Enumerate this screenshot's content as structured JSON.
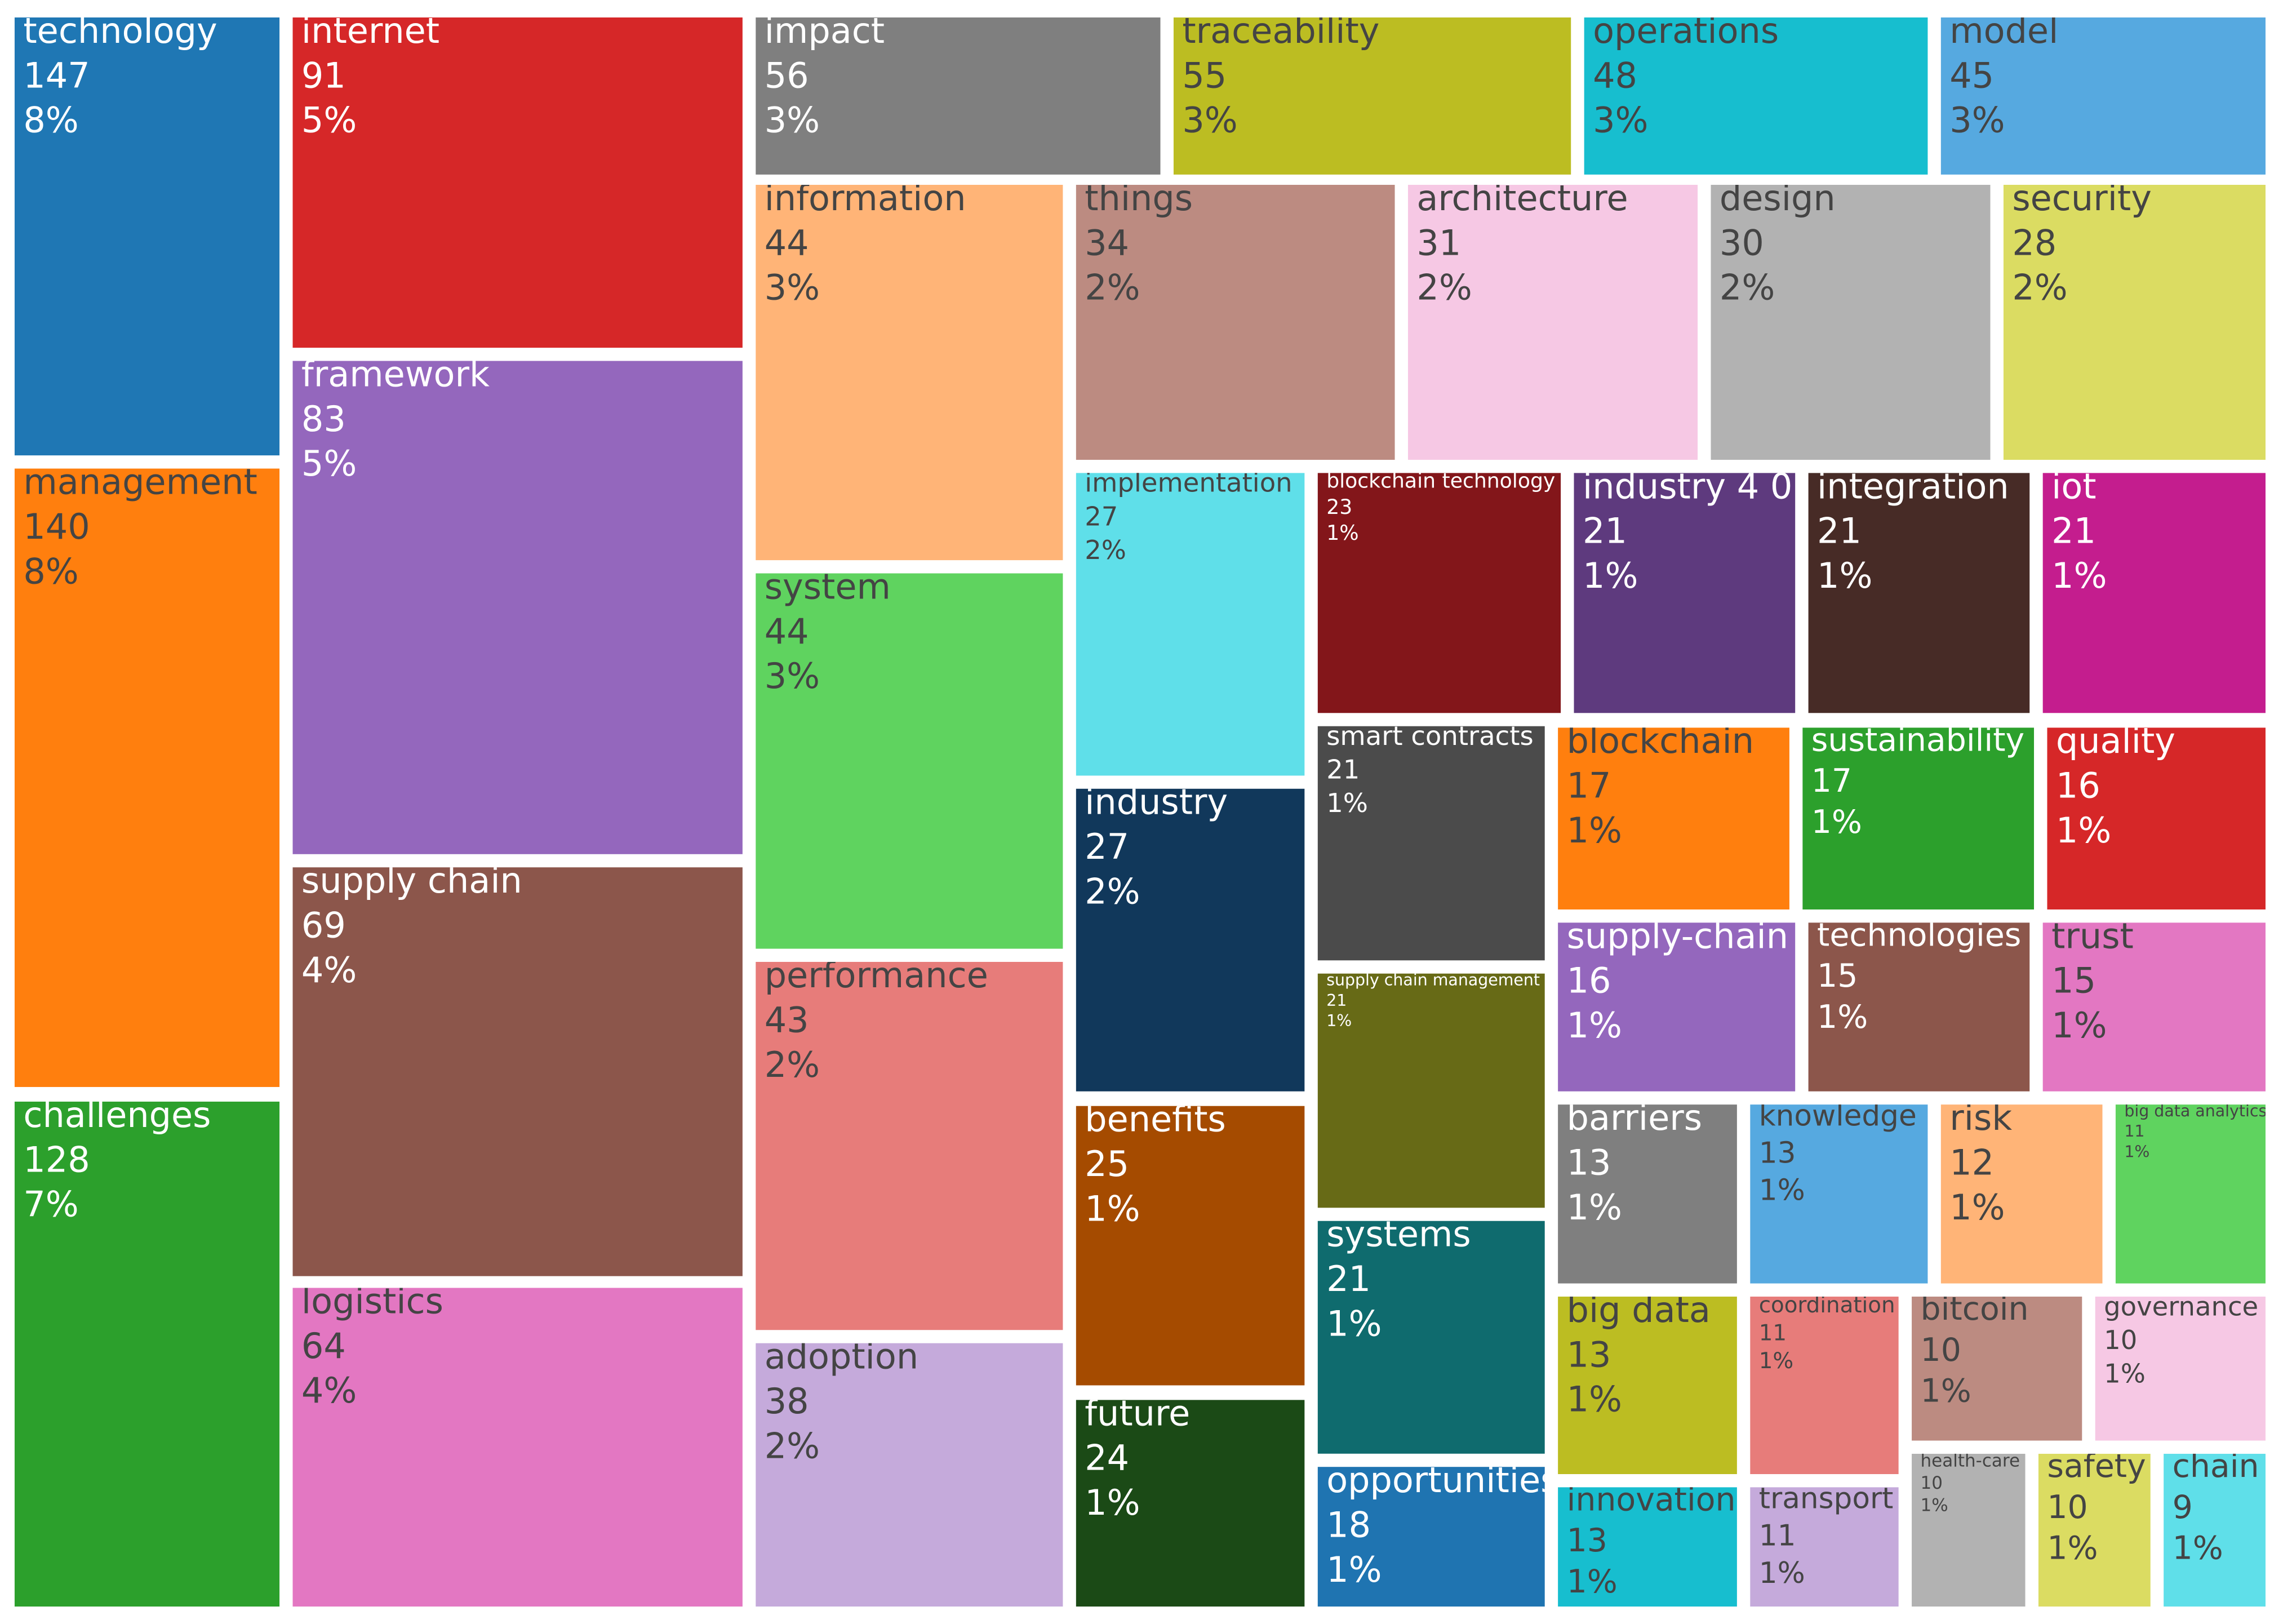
{
  "chart_data": {
    "type": "treemap",
    "categories": [
      "technology",
      "management",
      "challenges",
      "internet",
      "framework",
      "supply chain",
      "logistics",
      "impact",
      "traceability",
      "operations",
      "model",
      "information",
      "system",
      "performance",
      "adoption",
      "things",
      "architecture",
      "design",
      "security",
      "implementation",
      "industry",
      "benefits",
      "future",
      "blockchain technology",
      "industry 4 0",
      "integration",
      "iot",
      "smart contracts",
      "supply chain management",
      "systems",
      "opportunities",
      "blockchain",
      "sustainability",
      "quality",
      "supply-chain",
      "technologies",
      "trust",
      "barriers",
      "knowledge",
      "risk",
      "big data analytics",
      "big data",
      "innovation",
      "coordination",
      "transport",
      "bitcoin",
      "governance",
      "health-care",
      "safety",
      "chain"
    ],
    "values": [
      147,
      140,
      128,
      91,
      83,
      69,
      64,
      56,
      55,
      48,
      45,
      44,
      44,
      43,
      38,
      34,
      31,
      30,
      28,
      27,
      27,
      25,
      24,
      23,
      21,
      21,
      21,
      21,
      21,
      21,
      18,
      17,
      17,
      16,
      16,
      15,
      15,
      13,
      13,
      12,
      11,
      13,
      13,
      11,
      11,
      10,
      10,
      10,
      10,
      9
    ],
    "share_labels": [
      "8%",
      "8%",
      "7%",
      "5%",
      "5%",
      "4%",
      "4%",
      "3%",
      "3%",
      "3%",
      "3%",
      "3%",
      "3%",
      "2%",
      "2%",
      "2%",
      "2%",
      "2%",
      "2%",
      "2%",
      "2%",
      "1%",
      "1%",
      "1%",
      "1%",
      "1%",
      "1%",
      "1%",
      "1%",
      "1%",
      "1%",
      "1%",
      "1%",
      "1%",
      "1%",
      "1%",
      "1%",
      "1%",
      "1%",
      "1%",
      "1%",
      "1%",
      "1%",
      "1%",
      "1%",
      "1%",
      "1%",
      "1%",
      "1%",
      "1%"
    ],
    "colors": [
      "#1f77b4",
      "#ff7f0e",
      "#2ca02c",
      "#d62728",
      "#9467bd",
      "#8c564b",
      "#e377c2",
      "#7f7f7f",
      "#bcbd22",
      "#17becf",
      "#56a9e0",
      "#ffb477",
      "#5fd35f",
      "#e77c7a",
      "#c5aadb",
      "#bc8b81",
      "#f6c8e4",
      "#b2b2b2",
      "#dbdc62",
      "#5fdfe9",
      "#11385b",
      "#a54b00",
      "#1b4a16",
      "#83161a",
      "#5e3a7e",
      "#472b26",
      "#c41d8e",
      "#4b4b4b",
      "#676a16",
      "#0f6b6e",
      "#1f74b1",
      "#ff7f0e",
      "#2ca02c",
      "#d62728",
      "#9467bd",
      "#8c564b",
      "#e377c2",
      "#7f7f7f",
      "#56a9e0",
      "#ffb477",
      "#5fd35f",
      "#bcbd22",
      "#17becf",
      "#e77c7a",
      "#c5aadb",
      "#bc8b81",
      "#f6c8e4",
      "#b2b2b2",
      "#dbdc62",
      "#5fdfe9"
    ]
  }
}
